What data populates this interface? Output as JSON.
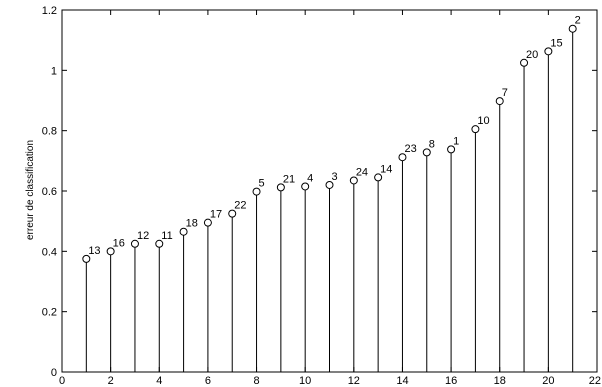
{
  "chart_data": {
    "type": "stem",
    "title": "",
    "xlabel": "",
    "ylabel": "erreur de classification",
    "xlim": [
      0,
      22
    ],
    "ylim": [
      0,
      1.2
    ],
    "xticks": [
      0,
      2,
      4,
      6,
      8,
      10,
      12,
      14,
      16,
      18,
      20,
      22
    ],
    "yticks": [
      0,
      0.2,
      0.4,
      0.6,
      0.8,
      1,
      1.2
    ],
    "grid": false,
    "marker": "circle",
    "series": [
      {
        "x": [
          1,
          2,
          3,
          4,
          5,
          6,
          7,
          8,
          9,
          10,
          11,
          12,
          13,
          14,
          15,
          16,
          17,
          18,
          19,
          20,
          21
        ],
        "y": [
          0.375,
          0.4,
          0.425,
          0.425,
          0.465,
          0.495,
          0.525,
          0.598,
          0.612,
          0.615,
          0.62,
          0.635,
          0.645,
          0.712,
          0.728,
          0.738,
          0.805,
          0.898,
          1.025,
          1.063,
          1.138
        ],
        "labels": [
          "13",
          "16",
          "12",
          "11",
          "18",
          "17",
          "22",
          "5",
          "21",
          "4",
          "3",
          "24",
          "14",
          "23",
          "8",
          "1",
          "10",
          "7",
          "20",
          "15",
          "2"
        ]
      }
    ]
  }
}
